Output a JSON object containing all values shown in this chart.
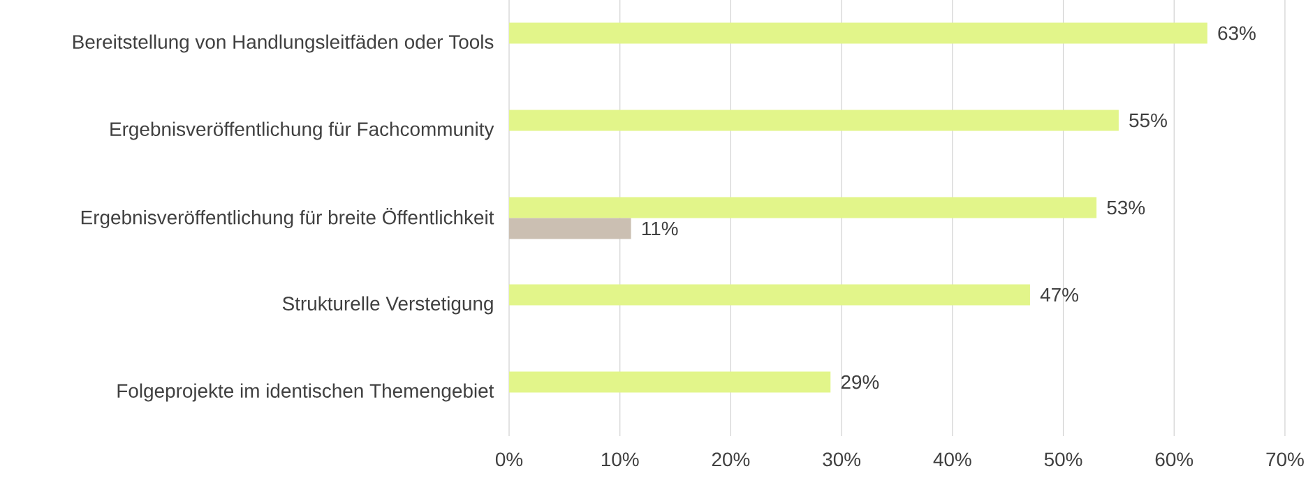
{
  "chart_data": {
    "type": "bar",
    "orientation": "horizontal",
    "categories": [
      "Bereitstellung von Handlungsleitfäden oder Tools",
      "Ergebnisveröffentlichung für Fachcommunity",
      "Ergebnisveröffentlichung für breite Öffentlichkeit",
      "Strukturelle Verstetigung",
      "Folgeprojekte im identischen Themengebiet"
    ],
    "series": [
      {
        "color": "#e2f58a",
        "values": [
          63,
          55,
          53,
          47,
          29
        ],
        "value_labels": [
          "63%",
          "55%",
          "53%",
          "47%",
          "29%"
        ]
      },
      {
        "color": "#cbbfb2",
        "values": [
          null,
          null,
          11,
          null,
          null
        ],
        "value_labels": [
          null,
          null,
          "11%",
          null,
          null
        ]
      }
    ],
    "xlim": [
      0,
      70
    ],
    "xticks": [
      {
        "value": 0,
        "label": "0%"
      },
      {
        "value": 10,
        "label": "10%"
      },
      {
        "value": 20,
        "label": "20%"
      },
      {
        "value": 30,
        "label": "30%"
      },
      {
        "value": 40,
        "label": "40%"
      },
      {
        "value": 50,
        "label": "50%"
      },
      {
        "value": 60,
        "label": "60%"
      },
      {
        "value": 70,
        "label": "70%"
      }
    ],
    "grid": "x"
  }
}
